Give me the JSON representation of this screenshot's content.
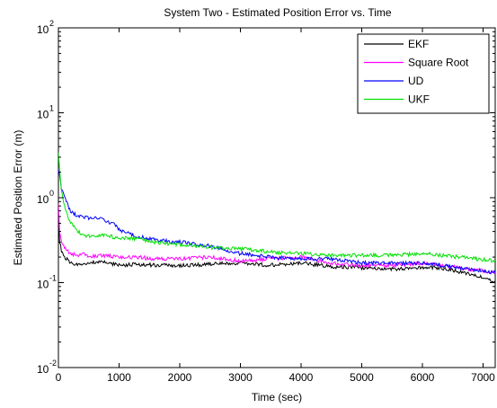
{
  "chart_data": {
    "type": "line",
    "title": "System Two - Estimated Position Error vs. Time",
    "xlabel": "Time (sec)",
    "ylabel": "Estimated Position Error (m)",
    "xlim": [
      0,
      7200
    ],
    "ylim": [
      0.01,
      100
    ],
    "yscale": "log",
    "xticks": [
      0,
      1000,
      2000,
      3000,
      4000,
      5000,
      6000,
      7000
    ],
    "xtick_labels": [
      "0",
      "1000",
      "2000",
      "3000",
      "4000",
      "5000",
      "6000",
      "7000"
    ],
    "yticks": [
      {
        "value": 0.01,
        "base": "10",
        "exp": "-2"
      },
      {
        "value": 0.1,
        "base": "10",
        "exp": "-1"
      },
      {
        "value": 1,
        "base": "10",
        "exp": "0"
      },
      {
        "value": 10,
        "base": "10",
        "exp": "1"
      },
      {
        "value": 100,
        "base": "10",
        "exp": "2"
      }
    ],
    "grid": false,
    "legend_position": "top-right",
    "series": [
      {
        "name": "EKF",
        "color": "#000000",
        "x": [
          0,
          20,
          50,
          100,
          200,
          300,
          400,
          500,
          700,
          1000,
          1300,
          1600,
          2000,
          2500,
          3000,
          3500,
          4000,
          4500,
          5000,
          5500,
          6000,
          6300,
          6600,
          6900,
          7200
        ],
        "y": [
          0.55,
          0.3,
          0.24,
          0.2,
          0.17,
          0.165,
          0.16,
          0.17,
          0.18,
          0.16,
          0.165,
          0.16,
          0.16,
          0.165,
          0.17,
          0.16,
          0.17,
          0.155,
          0.15,
          0.145,
          0.15,
          0.15,
          0.135,
          0.12,
          0.105
        ]
      },
      {
        "name": "Square Root",
        "color": "#ff00ff",
        "x": [
          0,
          20,
          50,
          100,
          200,
          300,
          400,
          500,
          700,
          1000,
          1300,
          1600,
          2000,
          2500,
          3000,
          3500,
          4000,
          4500,
          5000,
          5500,
          6000,
          6300,
          6600,
          6900,
          7200
        ],
        "y": [
          0.9,
          0.4,
          0.3,
          0.26,
          0.22,
          0.21,
          0.22,
          0.2,
          0.21,
          0.2,
          0.2,
          0.19,
          0.19,
          0.2,
          0.18,
          0.19,
          0.2,
          0.17,
          0.16,
          0.16,
          0.17,
          0.16,
          0.15,
          0.14,
          0.13
        ]
      },
      {
        "name": "UD",
        "color": "#0000ff",
        "x": [
          0,
          20,
          50,
          100,
          200,
          300,
          400,
          500,
          700,
          900,
          1000,
          1300,
          1600,
          2000,
          2500,
          3000,
          3500,
          4000,
          4500,
          5000,
          5500,
          6000,
          6300,
          6600,
          6900,
          7200
        ],
        "y": [
          2.2,
          1.8,
          1.3,
          1.0,
          0.7,
          0.62,
          0.6,
          0.58,
          0.56,
          0.5,
          0.42,
          0.35,
          0.32,
          0.3,
          0.27,
          0.22,
          0.2,
          0.19,
          0.19,
          0.17,
          0.17,
          0.17,
          0.16,
          0.15,
          0.14,
          0.13
        ]
      },
      {
        "name": "UKF",
        "color": "#00e000",
        "x": [
          0,
          20,
          50,
          100,
          200,
          300,
          400,
          500,
          700,
          1000,
          1300,
          1600,
          2000,
          2500,
          3000,
          3500,
          4000,
          4500,
          5000,
          5500,
          6000,
          6300,
          6600,
          6900,
          7200
        ],
        "y": [
          3.5,
          2.0,
          1.2,
          0.8,
          0.5,
          0.42,
          0.36,
          0.35,
          0.36,
          0.34,
          0.33,
          0.3,
          0.28,
          0.26,
          0.25,
          0.23,
          0.22,
          0.21,
          0.21,
          0.21,
          0.22,
          0.21,
          0.2,
          0.19,
          0.18
        ]
      }
    ]
  }
}
